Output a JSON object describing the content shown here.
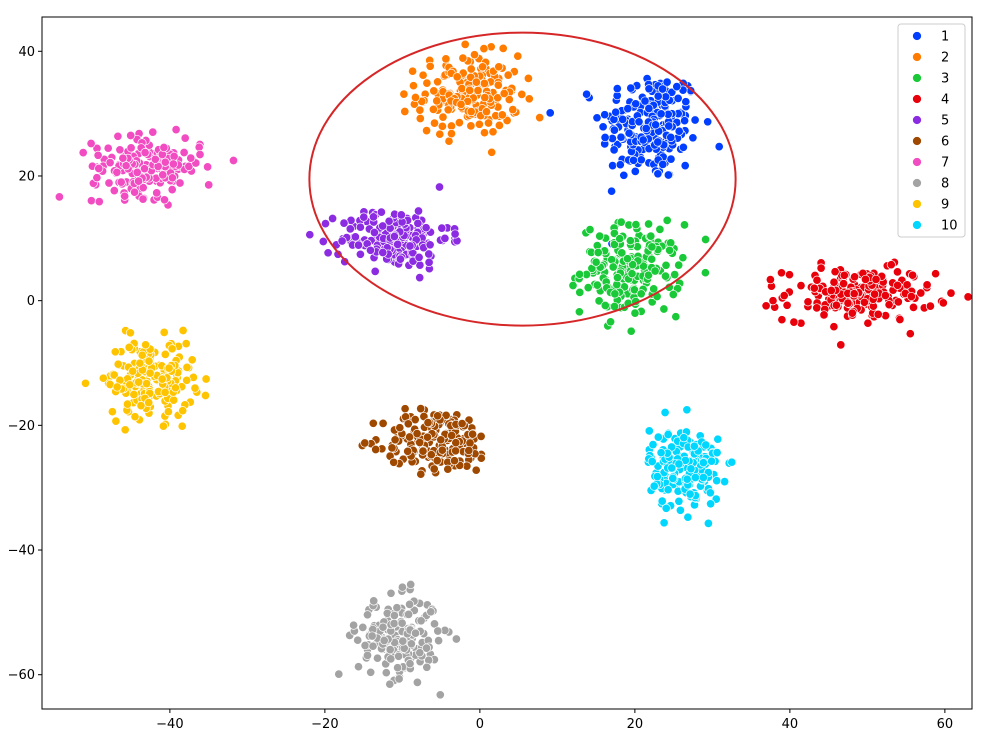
{
  "chart_data": {
    "type": "scatter",
    "title": "",
    "xlabel": "",
    "ylabel": "",
    "xlim": [
      -56.5,
      63.5
    ],
    "ylim": [
      -65.5,
      45.5
    ],
    "xticks": [
      -40,
      -20,
      0,
      20,
      40,
      60
    ],
    "yticks": [
      -60,
      -40,
      -20,
      0,
      20,
      40
    ],
    "x_tick_labels": [
      "−40",
      "−20",
      "0",
      "20",
      "40",
      "60"
    ],
    "y_tick_labels": [
      "−60",
      "−40",
      "−20",
      "0",
      "20",
      "40"
    ],
    "grid": false,
    "legend_position": "top-right",
    "legend_entries": [
      "1",
      "2",
      "3",
      "4",
      "5",
      "6",
      "7",
      "8",
      "9",
      "10"
    ],
    "colors": [
      "#023eff",
      "#ff7c00",
      "#1ac938",
      "#e8000b",
      "#8b2be2",
      "#9f4800",
      "#f14cc1",
      "#a3a3a3",
      "#ffc400",
      "#00d7ff"
    ],
    "clusters": [
      {
        "label": "1",
        "cx": 22,
        "cy": 28,
        "sx": 3.2,
        "sy": 4.5,
        "n": 220
      },
      {
        "label": "2",
        "cx": -1.5,
        "cy": 33,
        "sx": 3.3,
        "sy": 3.2,
        "n": 190
      },
      {
        "label": "3",
        "cx": 19.5,
        "cy": 5,
        "sx": 3.2,
        "sy": 3.6,
        "n": 190
      },
      {
        "label": "4",
        "cx": 49,
        "cy": 1,
        "sx": 4.8,
        "sy": 2.1,
        "n": 190
      },
      {
        "label": "5",
        "cx": -11,
        "cy": 10,
        "sx": 3.5,
        "sy": 2.4,
        "n": 190
      },
      {
        "label": "6",
        "cx": -5.5,
        "cy": -22.5,
        "sx": 3.5,
        "sy": 2.5,
        "n": 190
      },
      {
        "label": "7",
        "cx": -43,
        "cy": 21.5,
        "sx": 3.5,
        "sy": 2.3,
        "n": 190
      },
      {
        "label": "8",
        "cx": -10.5,
        "cy": -54,
        "sx": 2.6,
        "sy": 3.2,
        "n": 190
      },
      {
        "label": "9",
        "cx": -42.5,
        "cy": -12.5,
        "sx": 2.8,
        "sy": 3.1,
        "n": 190
      },
      {
        "label": "10",
        "cx": 26.5,
        "cy": -27,
        "sx": 2.3,
        "sy": 3.3,
        "n": 190
      }
    ],
    "annotation": {
      "shape": "ellipse",
      "color": "#d62728",
      "cx": 5.5,
      "cy": 19.5,
      "rx": 27.5,
      "ry": 23.5
    }
  }
}
